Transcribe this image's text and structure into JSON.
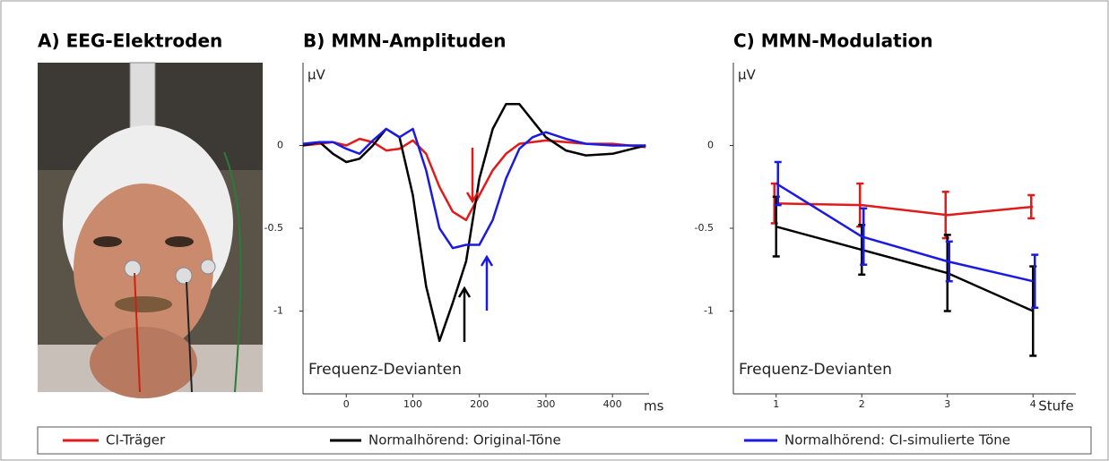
{
  "photo": {
    "title": "A) EEG-Elektroden"
  },
  "chart_data": [
    {
      "type": "line",
      "title": "B) MMN-Amplituden",
      "ylabel": "µV",
      "xlabel": "ms",
      "annotation": "Frequenz-Devianten",
      "x": [
        -65,
        -40,
        -20,
        0,
        20,
        40,
        60,
        80,
        100,
        120,
        140,
        160,
        180,
        200,
        220,
        240,
        260,
        280,
        300,
        330,
        360,
        400,
        450
      ],
      "xlim": [
        -65,
        455
      ],
      "xticks": [
        0,
        100,
        200,
        300,
        400
      ],
      "ylim": [
        -1.5,
        0.5
      ],
      "yticks": [
        0,
        -0.5,
        -1
      ],
      "series": [
        {
          "name": "CI-Träger",
          "color": "#e01b1b",
          "values": [
            0,
            0.01,
            0.02,
            0,
            0.04,
            0.02,
            -0.03,
            -0.02,
            0.03,
            -0.05,
            -0.25,
            -0.4,
            -0.45,
            -0.3,
            -0.15,
            -0.05,
            0.01,
            0.02,
            0.03,
            0.02,
            0.01,
            0.01,
            -0.01
          ]
        },
        {
          "name": "Normalhörend: Original-Töne",
          "color": "#000000",
          "values": [
            0,
            0.02,
            -0.05,
            -0.1,
            -0.08,
            0,
            0.1,
            0.05,
            -0.3,
            -0.85,
            -1.18,
            -0.95,
            -0.7,
            -0.2,
            0.1,
            0.25,
            0.25,
            0.15,
            0.05,
            -0.03,
            -0.06,
            -0.05,
            0
          ]
        },
        {
          "name": "Normalhörend: CI-simulierte Töne",
          "color": "#1b1be0",
          "values": [
            0.01,
            0.02,
            0.02,
            -0.02,
            -0.05,
            0.03,
            0.1,
            0.05,
            0.1,
            -0.15,
            -0.5,
            -0.62,
            -0.6,
            -0.6,
            -0.45,
            -0.2,
            -0.02,
            0.05,
            0.08,
            0.04,
            0.01,
            0,
            0
          ]
        }
      ]
    },
    {
      "type": "errorline",
      "title": "C) MMN-Modulation",
      "ylabel": "µV",
      "xlabel": "Stufe",
      "annotation": "Frequenz-Devianten",
      "categories": [
        "1",
        "2",
        "3",
        "4"
      ],
      "ylim": [
        -1.5,
        0.5
      ],
      "yticks": [
        0,
        -0.5,
        -1
      ],
      "series": [
        {
          "name": "CI-Träger",
          "color": "#e01b1b",
          "values": [
            -0.35,
            -0.36,
            -0.42,
            -0.37
          ],
          "errors": [
            0.12,
            0.13,
            0.14,
            0.07
          ]
        },
        {
          "name": "Normalhörend: Original-Töne",
          "color": "#000000",
          "values": [
            -0.49,
            -0.63,
            -0.77,
            -1.0
          ],
          "errors": [
            0.18,
            0.15,
            0.23,
            0.27
          ]
        },
        {
          "name": "Normalhörend: CI-simulierte Töne",
          "color": "#1b1be0",
          "values": [
            -0.23,
            -0.55,
            -0.7,
            -0.82
          ],
          "errors": [
            0.13,
            0.17,
            0.12,
            0.16
          ]
        }
      ]
    }
  ]
}
